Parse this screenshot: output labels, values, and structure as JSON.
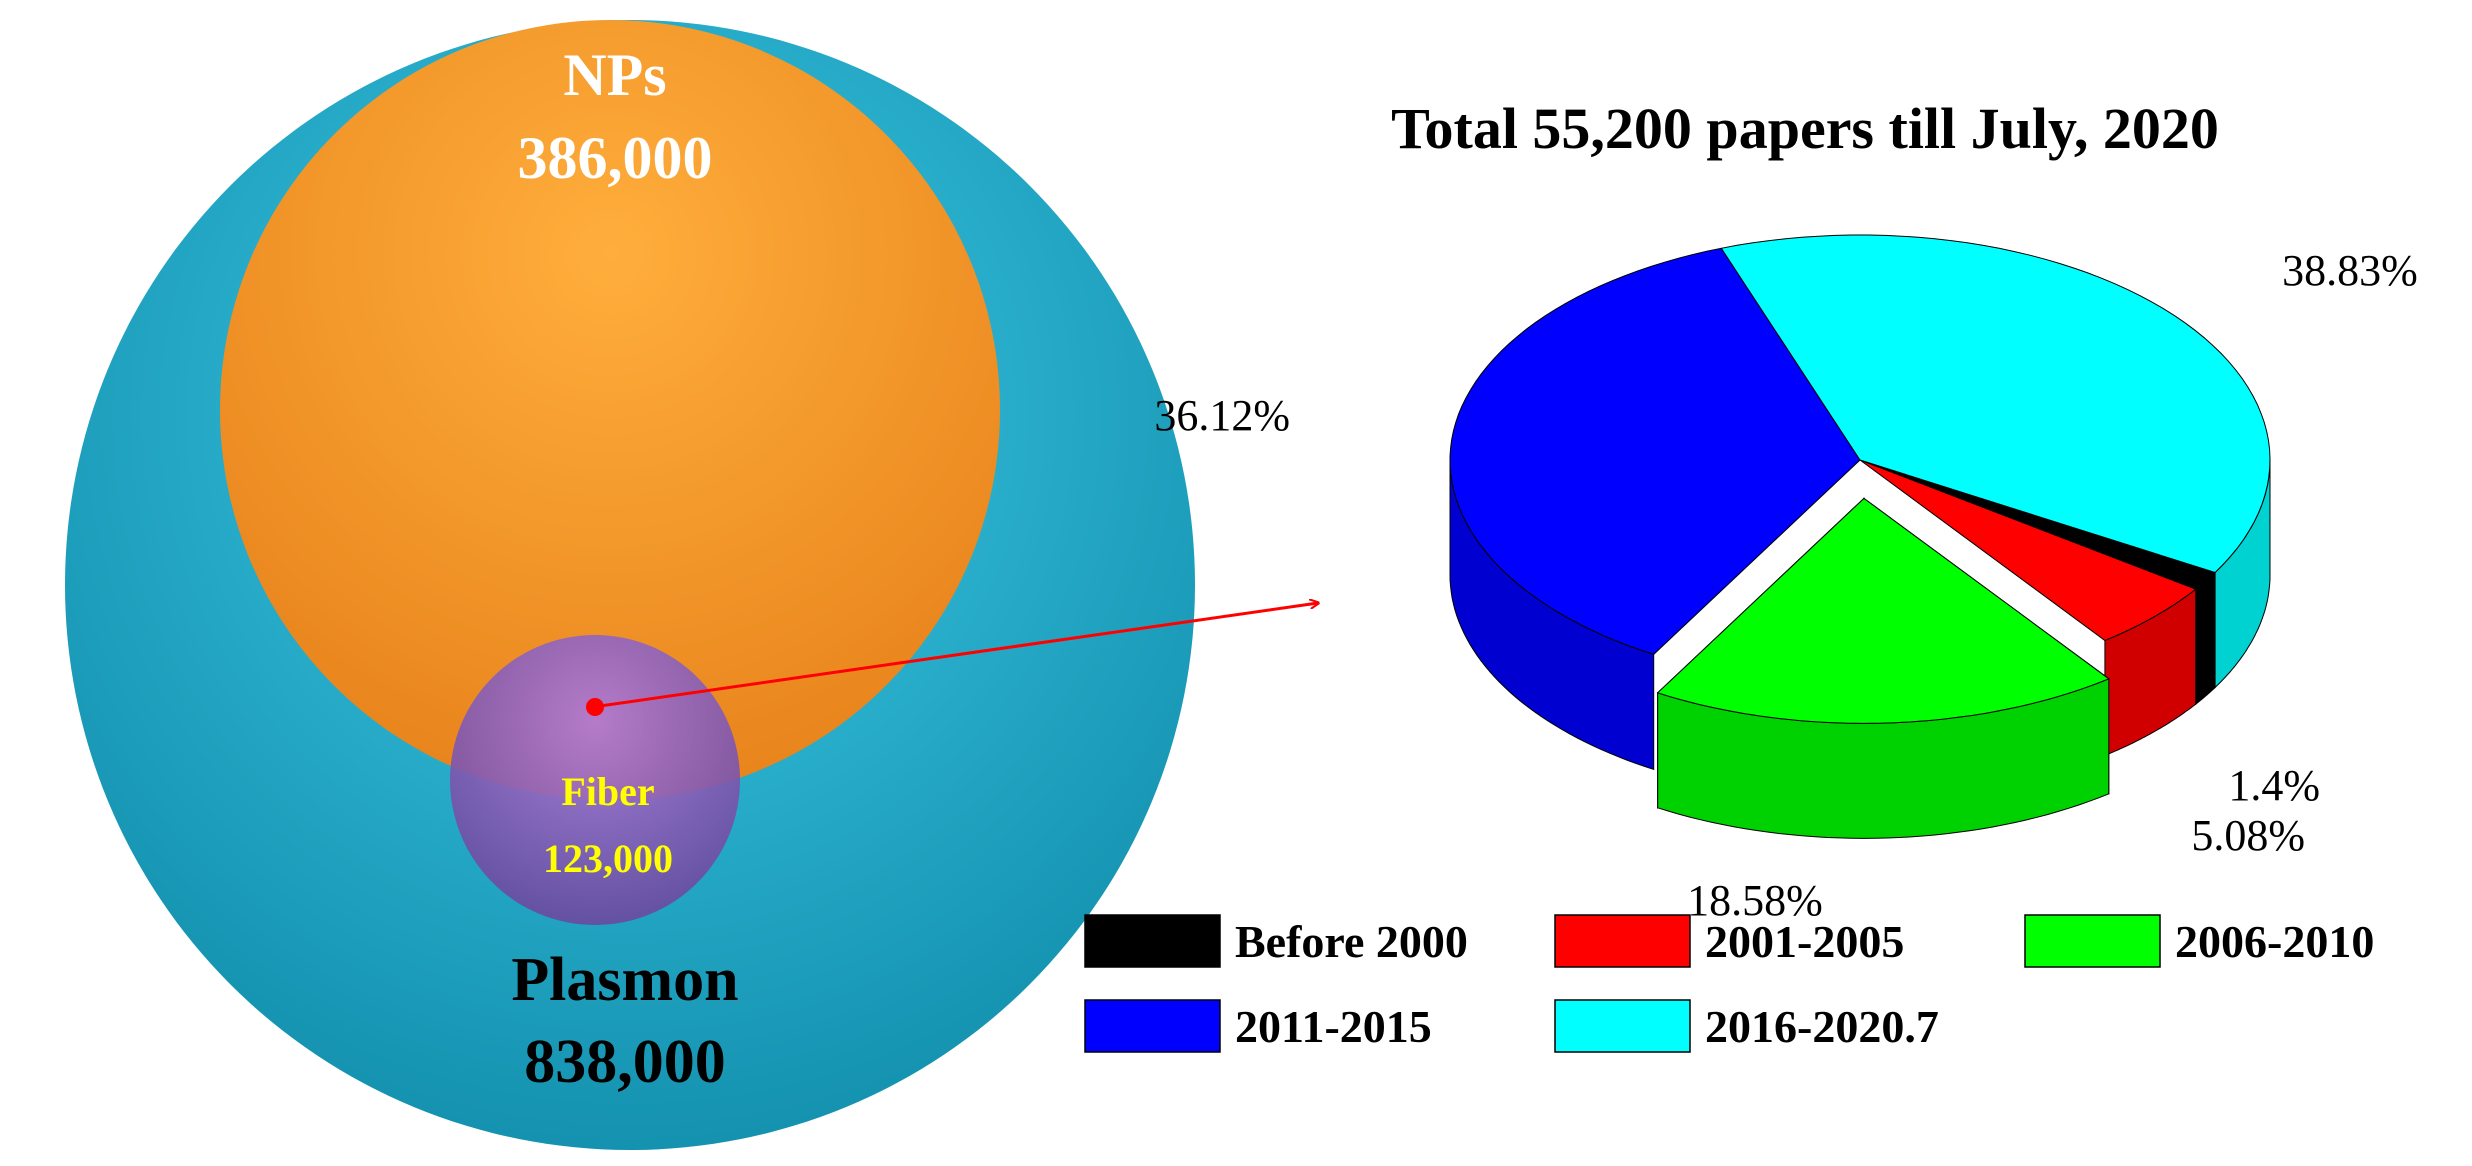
{
  "venn": {
    "outer": {
      "label": "Plasmon",
      "value": "838,000",
      "color": "#1fb4d2"
    },
    "inner_large": {
      "label": "NPs",
      "value": "386,000",
      "color": "#f7931e"
    },
    "inner_small": {
      "label": "Fiber",
      "value": "123,000",
      "color": "#8a5cb8"
    },
    "arrow_color": "#ff0000"
  },
  "chart_data": {
    "type": "pie",
    "title": "Total 55,200 papers till July, 2020",
    "style": "3d-exploded",
    "legend_position": "bottom",
    "slices": [
      {
        "name": "Before 2000",
        "value": 1.4,
        "label": "1.4%",
        "color": "#000000"
      },
      {
        "name": "2001-2005",
        "value": 5.08,
        "label": "5.08%",
        "color": "#ff0000"
      },
      {
        "name": "2006-2010",
        "value": 18.58,
        "label": "18.58%",
        "color": "#00ff00"
      },
      {
        "name": "2011-2015",
        "value": 36.12,
        "label": "36.12%",
        "color": "#0000ff"
      },
      {
        "name": "2016-2020.7",
        "value": 38.83,
        "label": "38.83%",
        "color": "#00ffff"
      }
    ]
  }
}
